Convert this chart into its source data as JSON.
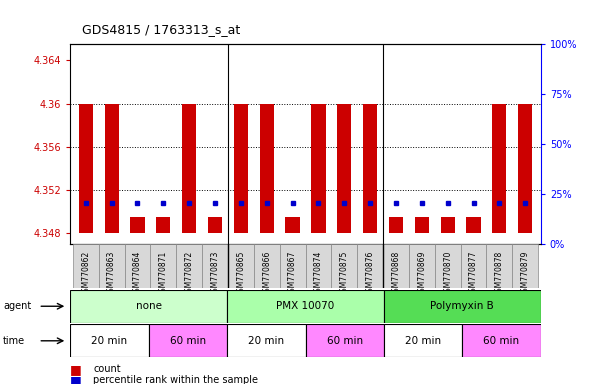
{
  "title": "GDS4815 / 1763313_s_at",
  "samples": [
    "GSM770862",
    "GSM770863",
    "GSM770864",
    "GSM770871",
    "GSM770872",
    "GSM770873",
    "GSM770865",
    "GSM770866",
    "GSM770867",
    "GSM770874",
    "GSM770875",
    "GSM770876",
    "GSM770868",
    "GSM770869",
    "GSM770870",
    "GSM770877",
    "GSM770878",
    "GSM770879"
  ],
  "count_values": [
    4.36,
    4.36,
    4.3495,
    4.3495,
    4.36,
    4.3495,
    4.36,
    4.36,
    4.3495,
    4.36,
    4.36,
    4.36,
    4.3495,
    4.3495,
    4.3495,
    4.3495,
    4.36,
    4.36
  ],
  "percentile_values": [
    4.3508,
    4.3508,
    4.3508,
    4.3508,
    4.3508,
    4.3508,
    4.3508,
    4.3508,
    4.3508,
    4.3508,
    4.3508,
    4.3508,
    4.3508,
    4.3508,
    4.3508,
    4.3508,
    4.3508,
    4.3508
  ],
  "ylim_left": [
    4.347,
    4.3655
  ],
  "ylim_right": [
    0,
    100
  ],
  "yticks_left": [
    4.348,
    4.352,
    4.356,
    4.36,
    4.364
  ],
  "yticks_right": [
    0,
    25,
    50,
    75,
    100
  ],
  "bar_color": "#cc0000",
  "dot_color": "#0000cc",
  "base_value": 4.348,
  "agents": [
    "none",
    "PMX 10070",
    "Polymyxin B"
  ],
  "agent_ranges": [
    [
      0,
      6
    ],
    [
      6,
      12
    ],
    [
      12,
      18
    ]
  ],
  "agent_colors": [
    "#ccffcc",
    "#aaffaa",
    "#55dd55"
  ],
  "times": [
    "20 min",
    "60 min",
    "20 min",
    "60 min",
    "20 min",
    "60 min"
  ],
  "time_ranges": [
    [
      0,
      3
    ],
    [
      3,
      6
    ],
    [
      6,
      9
    ],
    [
      9,
      12
    ],
    [
      12,
      15
    ],
    [
      15,
      18
    ]
  ],
  "time_colors": [
    "#ffffff",
    "#ff88ff",
    "#ffffff",
    "#ff88ff",
    "#ffffff",
    "#ff88ff"
  ],
  "plot_bg": "#ffffff"
}
